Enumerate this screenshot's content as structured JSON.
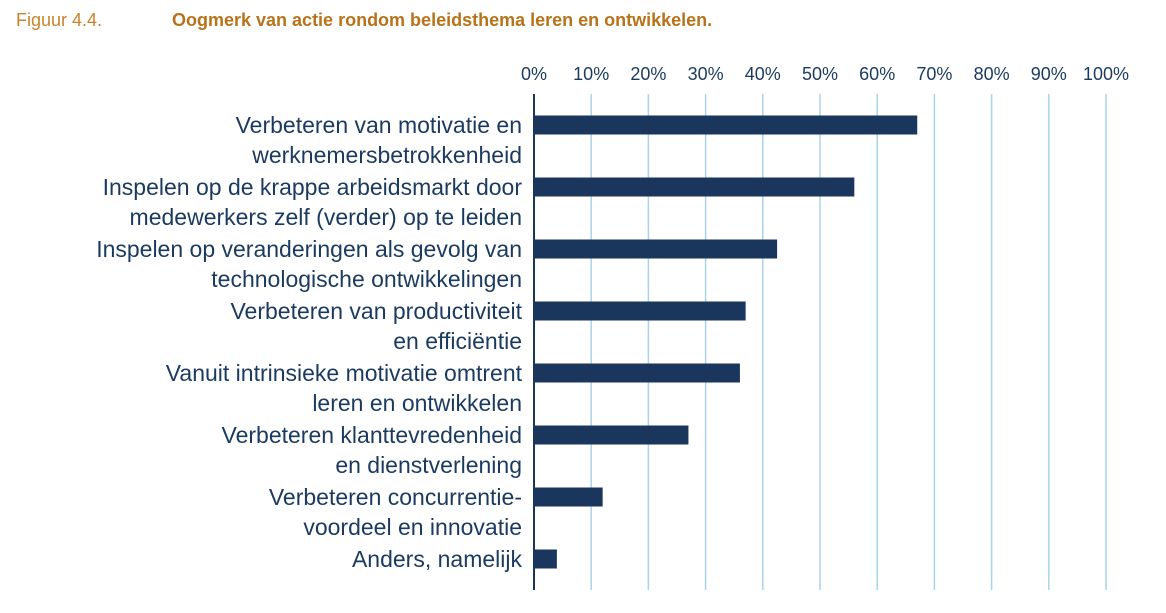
{
  "figure": {
    "number": "Figuur 4.4.",
    "title": "Oogmerk van actie rondom beleidsthema leren en ontwikkelen."
  },
  "colors": {
    "bar": "#1b365d",
    "gridline": "#a9d3ea",
    "axis": "#1b365d",
    "text": "#1b3a5f",
    "title": "#b8731a"
  },
  "chart_data": {
    "type": "bar",
    "orientation": "horizontal",
    "title": "Oogmerk van actie rondom beleidsthema leren en ontwikkelen.",
    "xlabel": "",
    "ylabel": "",
    "xlim": [
      0,
      100
    ],
    "x_ticks": [
      "0%",
      "10%",
      "20%",
      "30%",
      "40%",
      "50%",
      "60%",
      "70%",
      "80%",
      "90%",
      "100%"
    ],
    "x_axis_position": "top",
    "grid": true,
    "categories": [
      [
        "Verbeteren van motivatie en",
        "werknemersbetrokkenheid"
      ],
      [
        "Inspelen op de krappe arbeidsmarkt door",
        "medewerkers zelf (verder) op te leiden"
      ],
      [
        "Inspelen op veranderingen als gevolg van",
        "technologische ontwikkelingen"
      ],
      [
        "Verbeteren van productiviteit",
        "en efficiëntie"
      ],
      [
        "Vanuit intrinsieke motivatie omtrent",
        "leren en ontwikkelen"
      ],
      [
        "Verbeteren klanttevredenheid",
        "en dienstverlening"
      ],
      [
        "Verbeteren concurrentie-",
        "voordeel en innovatie"
      ],
      [
        "Anders, namelijk"
      ]
    ],
    "values": [
      67,
      56,
      42.5,
      37,
      36,
      27,
      12,
      4
    ]
  }
}
